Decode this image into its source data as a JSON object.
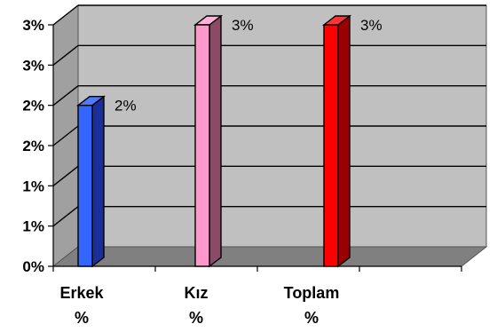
{
  "chart_data": {
    "type": "bar",
    "title": "",
    "xlabel": "",
    "ylabel": "",
    "categories": [
      [
        "Erkek",
        "%"
      ],
      [
        "Kız",
        "%"
      ],
      [
        "Toplam",
        "%"
      ]
    ],
    "values": [
      2.0,
      3.0,
      3.0
    ],
    "value_unit": "%",
    "data_labels": [
      "2%",
      "3%",
      "3%"
    ],
    "ylim": [
      0,
      3.0
    ],
    "y_ticks": [
      {
        "value": 0,
        "label": "0%"
      },
      {
        "value": 0.5,
        "label": "1%"
      },
      {
        "value": 1.0,
        "label": "1%"
      },
      {
        "value": 1.5,
        "label": "2%"
      },
      {
        "value": 2.0,
        "label": "2%"
      },
      {
        "value": 2.5,
        "label": "3%"
      },
      {
        "value": 3.0,
        "label": "3%"
      }
    ],
    "grid": true,
    "style": "3d",
    "colors": {
      "bars": [
        {
          "front": "#3366ff",
          "side": "#1a2f99",
          "top": "#4d7aff"
        },
        {
          "front": "#ff99cc",
          "side": "#8c4a66",
          "top": "#ffb3d9"
        },
        {
          "front": "#ff0000",
          "side": "#990000",
          "top": "#ff3333"
        }
      ],
      "wall": "#c0c0c0",
      "side_wall": "#a0a0a0",
      "floor": "#808080",
      "grid": "#000000"
    }
  }
}
